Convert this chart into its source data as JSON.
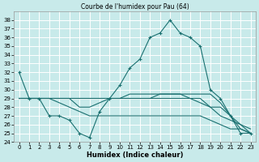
{
  "title": "Courbe de l'humidex pour Pau (64)",
  "xlabel": "Humidex (Indice chaleur)",
  "xlim": [
    -0.5,
    23.5
  ],
  "ylim": [
    24,
    39
  ],
  "yticks": [
    24,
    25,
    26,
    27,
    28,
    29,
    30,
    31,
    32,
    33,
    34,
    35,
    36,
    37,
    38
  ],
  "xticks": [
    0,
    1,
    2,
    3,
    4,
    5,
    6,
    7,
    8,
    9,
    10,
    11,
    12,
    13,
    14,
    15,
    16,
    17,
    18,
    19,
    20,
    21,
    22,
    23
  ],
  "bg_color": "#c8eaea",
  "grid_color": "#ffffff",
  "line_color": "#1a7070",
  "lines": [
    {
      "x": [
        0,
        1,
        2,
        3,
        4,
        5,
        6,
        7,
        8,
        9,
        10,
        11,
        12,
        13,
        14,
        15,
        16,
        17,
        18,
        19,
        20,
        21,
        22,
        23
      ],
      "y": [
        32,
        29,
        29,
        27,
        27,
        26.5,
        25,
        24.5,
        27.5,
        29,
        30.5,
        32.5,
        33.5,
        36,
        36.5,
        38,
        36.5,
        36,
        35,
        30,
        29,
        27,
        25,
        25
      ],
      "marker": "+"
    },
    {
      "x": [
        0,
        1,
        2,
        3,
        4,
        5,
        6,
        7,
        8,
        9,
        10,
        11,
        12,
        13,
        14,
        15,
        16,
        17,
        18,
        19,
        20,
        21,
        22,
        23
      ],
      "y": [
        29,
        29,
        29,
        29,
        29,
        29,
        29,
        29,
        29,
        29,
        29,
        29.5,
        29.5,
        29.5,
        29.5,
        29.5,
        29.5,
        29.5,
        29.5,
        29.5,
        28.5,
        27,
        25.5,
        25
      ],
      "marker": null
    },
    {
      "x": [
        0,
        1,
        2,
        3,
        4,
        5,
        6,
        7,
        8,
        9,
        10,
        11,
        12,
        13,
        14,
        15,
        16,
        17,
        18,
        19,
        20,
        21,
        22,
        23
      ],
      "y": [
        29,
        29,
        29,
        29,
        29,
        29,
        29,
        29,
        29,
        29,
        29,
        29,
        29,
        29,
        29.5,
        29.5,
        29.5,
        29,
        29,
        28,
        28,
        27,
        26,
        25
      ],
      "marker": null
    },
    {
      "x": [
        0,
        1,
        2,
        3,
        4,
        5,
        6,
        7,
        8,
        9,
        10,
        11,
        12,
        13,
        14,
        15,
        16,
        17,
        18,
        19,
        20,
        21,
        22,
        23
      ],
      "y": [
        29,
        29,
        29,
        29,
        29,
        29,
        28,
        28,
        28.5,
        29,
        29,
        29,
        29,
        29,
        29,
        29,
        29,
        29,
        28.5,
        28,
        27,
        26.5,
        26,
        25.5
      ],
      "marker": null
    },
    {
      "x": [
        0,
        1,
        2,
        3,
        4,
        5,
        6,
        7,
        8,
        9,
        10,
        11,
        12,
        13,
        14,
        15,
        16,
        17,
        18,
        19,
        20,
        21,
        22,
        23
      ],
      "y": [
        29,
        29,
        29,
        29,
        28.5,
        28,
        27.5,
        27,
        27,
        27,
        27,
        27,
        27,
        27,
        27,
        27,
        27,
        27,
        27,
        26.5,
        26,
        25.5,
        25.5,
        25
      ],
      "marker": null
    }
  ],
  "title_fontsize": 5.5,
  "xlabel_fontsize": 6.0,
  "tick_fontsize": 5.0
}
